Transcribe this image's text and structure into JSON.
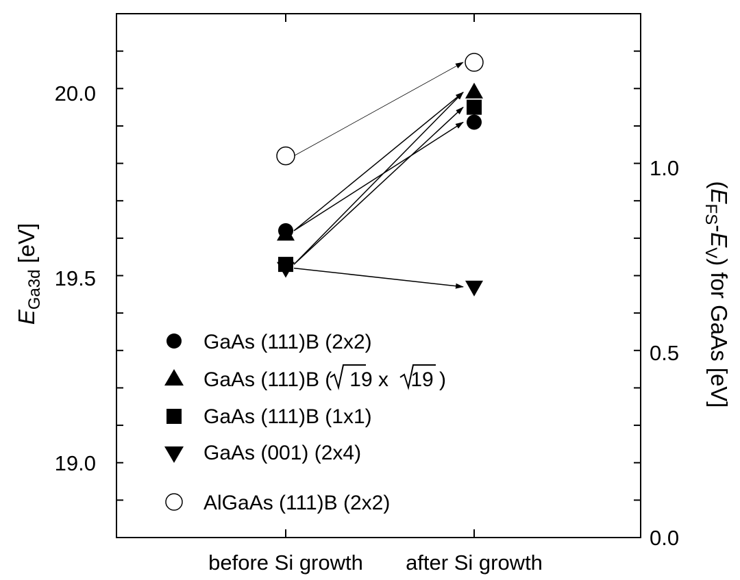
{
  "chart_data": {
    "type": "scatter",
    "categories": [
      "before Si growth",
      "after Si growth"
    ],
    "y_left": {
      "label_main": "E",
      "label_sub": "Ga3d",
      "label_unit": " [eV]",
      "range": [
        18.8,
        20.2
      ],
      "ticks": [
        19.0,
        19.5,
        20.0
      ],
      "tick_labels": [
        "19.0",
        "19.5",
        "20.0"
      ]
    },
    "y_right": {
      "label_pre": "(",
      "label_e1": "E",
      "label_sub1": "FS",
      "label_mid": "-",
      "label_e2": "E",
      "label_sub2": "V",
      "label_post": ") for GaAs [eV]",
      "range": [
        0.0,
        1.4
      ],
      "ticks": [
        0.0,
        0.5,
        1.0
      ],
      "tick_labels": [
        "0.0",
        "0.5",
        "1.0"
      ]
    },
    "series": [
      {
        "name": "GaAs (111)B (2x2)",
        "marker": "circle",
        "values": [
          19.62,
          19.91
        ]
      },
      {
        "name_pre": "GaAs (111)B (",
        "name_root1": "19",
        "name_x": " x ",
        "name_root2": "19",
        "name_post": " )",
        "marker": "triangle-up",
        "values": [
          19.61,
          19.99
        ]
      },
      {
        "name": "GaAs (111)B (1x1)",
        "marker": "square",
        "values": [
          19.53,
          19.95
        ]
      },
      {
        "name": "GaAs (001) (2x4)",
        "marker": "triangle-down",
        "values": [
          19.52,
          19.47
        ]
      },
      {
        "name": "AlGaAs (111)B (2x2)",
        "marker": "circle-open",
        "values": [
          19.82,
          20.07
        ]
      }
    ],
    "grid": false,
    "legend_position": "bottom-left"
  }
}
